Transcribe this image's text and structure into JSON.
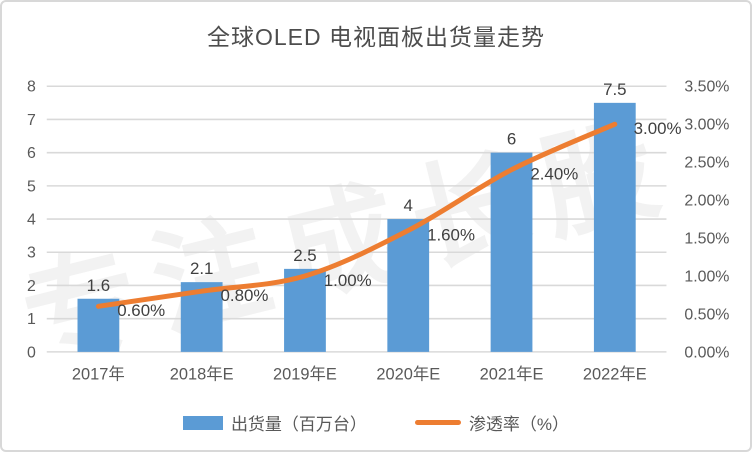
{
  "title": "全球OLED 电视面板出货量走势",
  "watermark": "专注成长股",
  "colors": {
    "bar": "#5B9BD5",
    "line": "#ED7D31",
    "grid": "#D9D9D9",
    "axis_text": "#595959",
    "label_text": "#404040"
  },
  "legend": {
    "items": [
      {
        "label": "出货量（百万台）",
        "series": "bar"
      },
      {
        "label": "渗透率（%）",
        "series": "line"
      }
    ]
  },
  "chart_data": {
    "type": "bar+line combo",
    "title": "全球OLED 电视面板出货量走势",
    "categories": [
      "2017年",
      "2018年E",
      "2019年E",
      "2020年E",
      "2021年E",
      "2022年E"
    ],
    "series": [
      {
        "name": "出货量（百万台）",
        "type": "bar",
        "axis": "left",
        "values": [
          1.6,
          2.1,
          2.5,
          4,
          6,
          7.5
        ],
        "labels": [
          "1.6",
          "2.1",
          "2.5",
          "4",
          "6",
          "7.5"
        ]
      },
      {
        "name": "渗透率（%）",
        "type": "line",
        "axis": "right",
        "values": [
          0.6,
          0.8,
          1.0,
          1.6,
          2.4,
          3.0
        ],
        "labels": [
          "0.60%",
          "0.80%",
          "1.00%",
          "1.60%",
          "2.40%",
          "3.00%"
        ]
      }
    ],
    "left_axis": {
      "min": 0,
      "max": 8,
      "ticks": [
        "0",
        "1",
        "2",
        "3",
        "4",
        "5",
        "6",
        "7",
        "8"
      ]
    },
    "right_axis": {
      "min": 0,
      "max": 3.5,
      "ticks": [
        "0.00%",
        "0.50%",
        "1.00%",
        "1.50%",
        "2.00%",
        "2.50%",
        "3.00%",
        "3.50%"
      ]
    },
    "grid": "horizontal gridlines on left-axis steps",
    "legend_position": "bottom"
  }
}
